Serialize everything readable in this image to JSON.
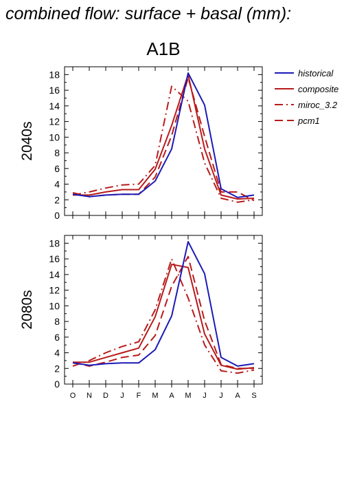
{
  "title": "combined flow: surface + basal (mm):",
  "scenario": "A1B",
  "colors": {
    "historical": "#1a1ab8",
    "model": "#b81a1a"
  },
  "legend": [
    {
      "name": "historical",
      "color": "#1a1ab8",
      "dash": "solid"
    },
    {
      "name": "composite",
      "color": "#b81a1a",
      "dash": "solid"
    },
    {
      "name": "miroc_3.2",
      "color": "#b81a1a",
      "dash": "dashdot"
    },
    {
      "name": "pcm1",
      "color": "#b81a1a",
      "dash": "dashed"
    }
  ],
  "chart_data": [
    {
      "type": "line",
      "panel": "2040s",
      "ylabel": "2040s",
      "xlabel": "",
      "categories": [
        "O",
        "N",
        "D",
        "J",
        "F",
        "M",
        "A",
        "M",
        "J",
        "J",
        "A",
        "S"
      ],
      "ylim": [
        0,
        19
      ],
      "yticks": [
        0,
        2,
        4,
        6,
        8,
        10,
        12,
        14,
        16,
        18
      ],
      "grid": false,
      "legend_position": "right",
      "series": [
        {
          "name": "historical",
          "values": [
            2.7,
            2.4,
            2.6,
            2.7,
            2.7,
            4.4,
            8.5,
            18.2,
            14.1,
            3.4,
            2.3,
            2.6
          ]
        },
        {
          "name": "composite",
          "values": [
            2.6,
            2.6,
            3.0,
            3.3,
            3.3,
            5.9,
            11.5,
            18.0,
            8.5,
            2.6,
            2.1,
            2.2
          ]
        },
        {
          "name": "miroc_3.2",
          "values": [
            2.6,
            3.0,
            3.5,
            3.9,
            4.0,
            6.4,
            16.5,
            14.6,
            6.7,
            2.2,
            1.7,
            2.0
          ]
        },
        {
          "name": "pcm1",
          "values": [
            2.9,
            2.4,
            2.6,
            2.7,
            2.7,
            4.9,
            10.2,
            17.6,
            10.1,
            3.0,
            3.0,
            1.9
          ]
        }
      ]
    },
    {
      "type": "line",
      "panel": "2080s",
      "ylabel": "2080s",
      "xlabel": "",
      "categories": [
        "O",
        "N",
        "D",
        "J",
        "F",
        "M",
        "A",
        "M",
        "J",
        "J",
        "A",
        "S"
      ],
      "ylim": [
        0,
        19
      ],
      "yticks": [
        0,
        2,
        4,
        6,
        8,
        10,
        12,
        14,
        16,
        18
      ],
      "grid": false,
      "legend_position": "none",
      "series": [
        {
          "name": "historical",
          "values": [
            2.7,
            2.4,
            2.6,
            2.7,
            2.7,
            4.4,
            8.7,
            18.2,
            14.1,
            3.4,
            2.3,
            2.6
          ]
        },
        {
          "name": "composite",
          "values": [
            2.8,
            2.8,
            3.4,
            4.0,
            4.6,
            8.6,
            15.3,
            14.9,
            6.4,
            2.4,
            1.9,
            2.1
          ]
        },
        {
          "name": "miroc_3.2",
          "values": [
            2.3,
            3.0,
            4.0,
            4.8,
            5.4,
            9.5,
            16.0,
            11.0,
            5.0,
            1.7,
            1.4,
            1.8
          ]
        },
        {
          "name": "pcm1",
          "values": [
            2.8,
            2.3,
            2.8,
            3.4,
            3.7,
            6.2,
            12.5,
            16.3,
            8.1,
            2.5,
            2.0,
            2.0
          ]
        }
      ]
    }
  ]
}
